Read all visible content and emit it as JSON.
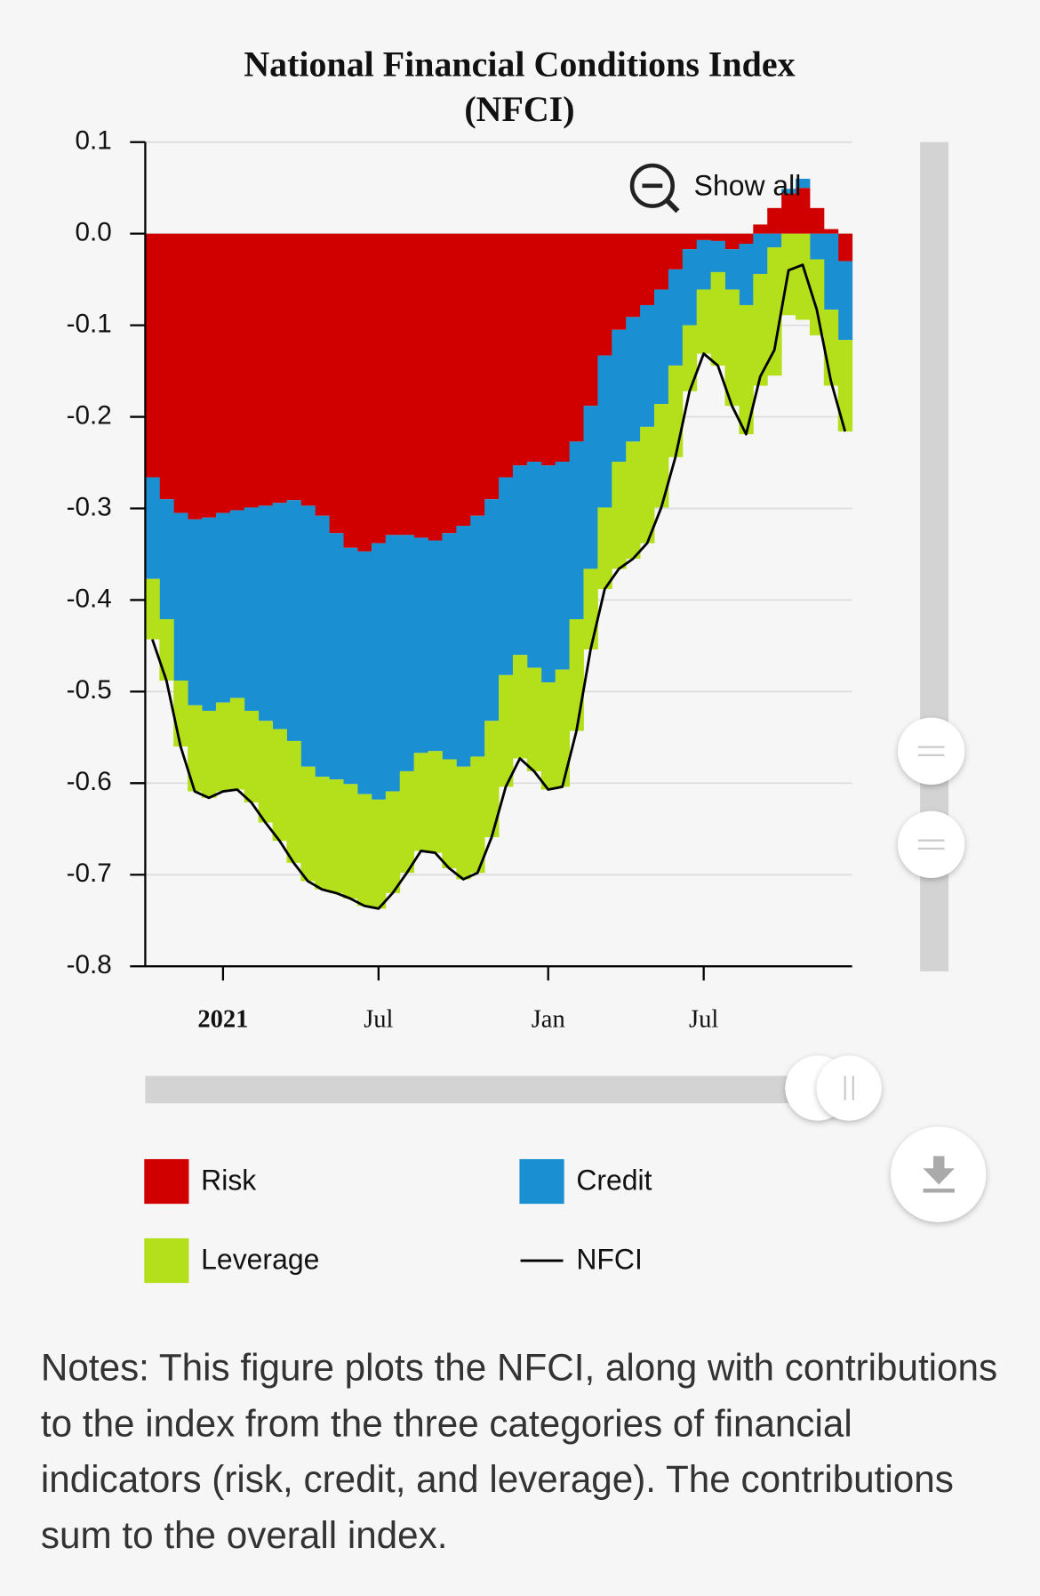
{
  "chart_data": {
    "type": "bar",
    "stacked": true,
    "title": "National Financial Conditions Index (NFCI)",
    "categories": [
      null,
      null,
      null,
      null,
      null,
      "2021",
      null,
      null,
      null,
      null,
      null,
      null,
      null,
      null,
      null,
      null,
      "Jul",
      null,
      null,
      null,
      null,
      null,
      null,
      null,
      null,
      null,
      null,
      null,
      "Jan",
      null,
      null,
      null,
      null,
      null,
      null,
      null,
      null,
      null,
      null,
      "Jul",
      null,
      null,
      null,
      null,
      null,
      null,
      null,
      null,
      null,
      null
    ],
    "series": [
      {
        "name": "Risk",
        "color": "#d10000",
        "values": [
          -0.266,
          -0.29,
          -0.305,
          -0.312,
          -0.31,
          -0.305,
          -0.302,
          -0.299,
          -0.297,
          -0.294,
          -0.291,
          -0.297,
          -0.308,
          -0.327,
          -0.343,
          -0.347,
          -0.338,
          -0.329,
          -0.329,
          -0.332,
          -0.335,
          -0.327,
          -0.319,
          -0.308,
          -0.29,
          -0.266,
          -0.253,
          -0.249,
          -0.253,
          -0.249,
          -0.227,
          -0.188,
          -0.133,
          -0.105,
          -0.091,
          -0.078,
          -0.061,
          -0.039,
          -0.017,
          -0.007,
          -0.008,
          -0.017,
          -0.011,
          0.01,
          0.028,
          0.044,
          0.05,
          0.028,
          0.005,
          -0.03
        ]
      },
      {
        "name": "Credit",
        "color": "#1a8fd1",
        "values": [
          -0.111,
          -0.131,
          -0.183,
          -0.203,
          -0.211,
          -0.207,
          -0.205,
          -0.222,
          -0.235,
          -0.247,
          -0.263,
          -0.285,
          -0.285,
          -0.269,
          -0.258,
          -0.265,
          -0.28,
          -0.28,
          -0.258,
          -0.235,
          -0.23,
          -0.247,
          -0.263,
          -0.263,
          -0.242,
          -0.216,
          -0.207,
          -0.225,
          -0.237,
          -0.227,
          -0.194,
          -0.178,
          -0.166,
          -0.144,
          -0.136,
          -0.133,
          -0.125,
          -0.105,
          -0.083,
          -0.054,
          -0.034,
          -0.044,
          -0.067,
          -0.044,
          -0.015,
          0.005,
          0.01,
          -0.028,
          -0.083,
          -0.086
        ]
      },
      {
        "name": "Leverage",
        "color": "#b4e01b",
        "values": [
          -0.066,
          -0.067,
          -0.072,
          -0.094,
          -0.095,
          -0.097,
          -0.1,
          -0.1,
          -0.111,
          -0.122,
          -0.133,
          -0.125,
          -0.123,
          -0.124,
          -0.125,
          -0.122,
          -0.119,
          -0.111,
          -0.111,
          -0.107,
          -0.111,
          -0.119,
          -0.123,
          -0.127,
          -0.127,
          -0.122,
          -0.113,
          -0.113,
          -0.117,
          -0.128,
          -0.122,
          -0.088,
          -0.089,
          -0.117,
          -0.128,
          -0.127,
          -0.113,
          -0.1,
          -0.072,
          -0.07,
          -0.102,
          -0.127,
          -0.141,
          -0.122,
          -0.14,
          -0.089,
          -0.094,
          -0.083,
          -0.083,
          -0.1
        ]
      },
      {
        "name": "NFCI",
        "type": "line",
        "color": "#000000",
        "values": [
          -0.443,
          -0.488,
          -0.56,
          -0.609,
          -0.616,
          -0.609,
          -0.607,
          -0.621,
          -0.643,
          -0.663,
          -0.687,
          -0.707,
          -0.716,
          -0.72,
          -0.726,
          -0.734,
          -0.737,
          -0.72,
          -0.698,
          -0.674,
          -0.676,
          -0.693,
          -0.705,
          -0.698,
          -0.659,
          -0.604,
          -0.573,
          -0.587,
          -0.607,
          -0.604,
          -0.543,
          -0.454,
          -0.388,
          -0.366,
          -0.355,
          -0.338,
          -0.299,
          -0.244,
          -0.172,
          -0.131,
          -0.144,
          -0.188,
          -0.219,
          -0.156,
          -0.127,
          -0.04,
          -0.034,
          -0.083,
          -0.161,
          -0.216
        ]
      }
    ],
    "ylim": [
      -0.8,
      0.1
    ],
    "yticks": [
      0.1,
      {
        "value": 0,
        "label": "0.0"
      },
      -0.1,
      -0.2,
      -0.3,
      -0.4,
      -0.5,
      -0.6,
      -0.7,
      -0.8
    ],
    "grid": true,
    "legend": "bottom"
  },
  "zoom_button": "Show all",
  "notes": "Notes: This figure plots the NFCI, along with contributions to the index from the three categories of financial indicators (risk, credit, and leverage). The contributions sum to the overall index."
}
